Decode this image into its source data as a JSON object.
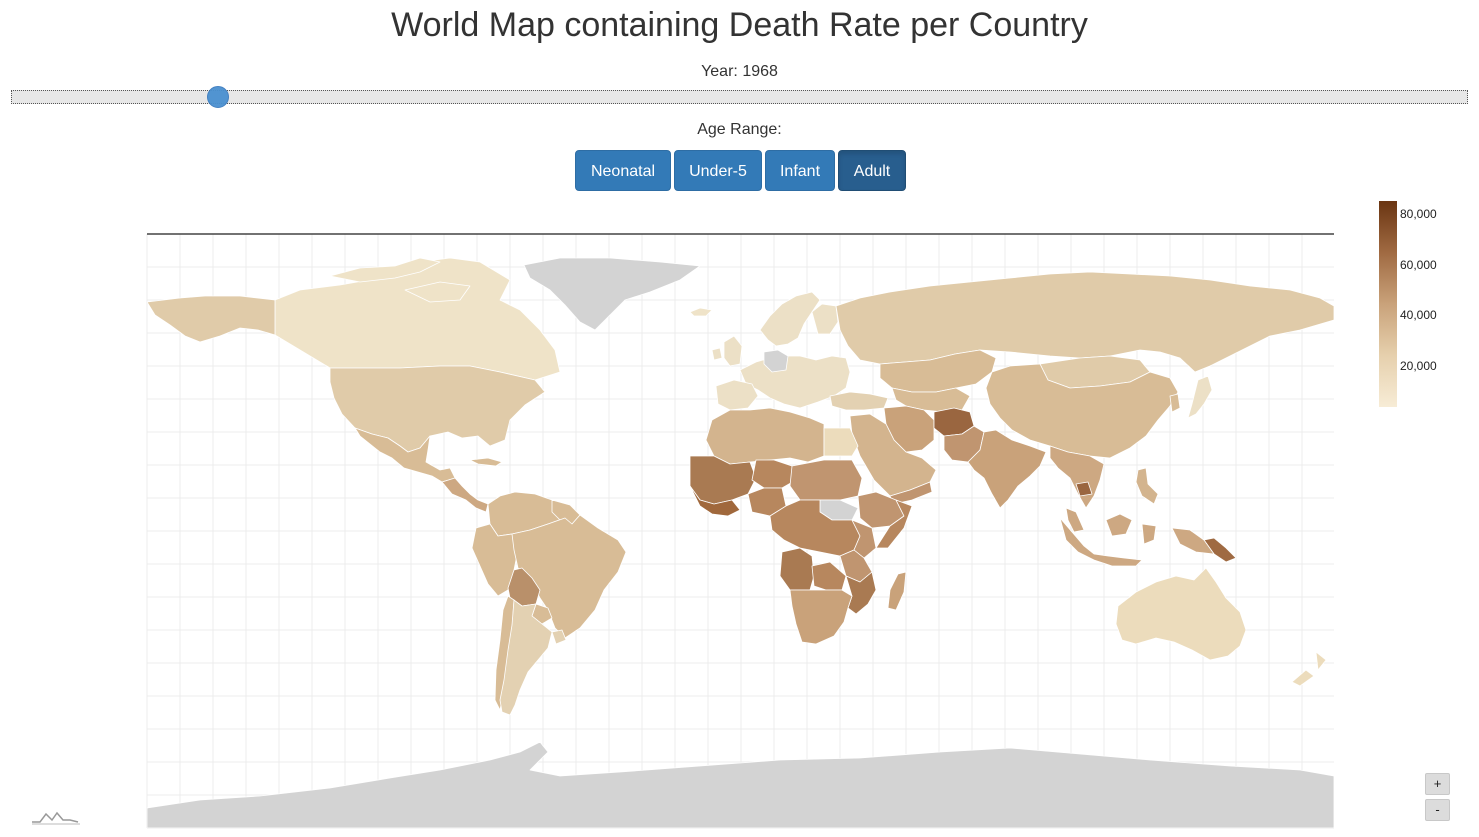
{
  "title": "World Map containing Death Rate per Country",
  "year": {
    "label": "Year:",
    "value": "1968",
    "slider_fraction": 0.142
  },
  "age_range": {
    "label": "Age Range:",
    "buttons": [
      "Neonatal",
      "Under-5",
      "Infant",
      "Adult"
    ],
    "selected": "Adult"
  },
  "legend": {
    "ticks": [
      "80,000",
      "60,000",
      "40,000",
      "20,000"
    ],
    "color_low": "#f7ecd6",
    "color_high": "#6a3512",
    "no_data_color": "#d3d3d3"
  },
  "zoom": {
    "in_label": "+",
    "out_label": "-"
  },
  "colors": {
    "button": "#337ab7",
    "button_active": "#285e8e",
    "slider_thumb": "#4a90d0"
  }
}
